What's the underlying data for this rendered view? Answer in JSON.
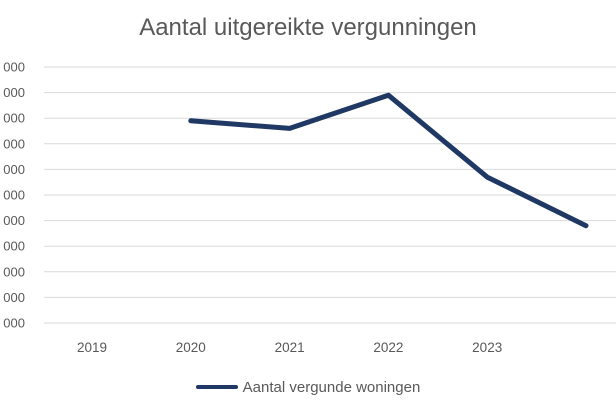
{
  "chart_data": {
    "type": "line",
    "title": "Aantal uitgereikte vergunningen",
    "x_axis": {
      "tick_labels": [
        "2019",
        "2020",
        "2021",
        "2022",
        "2023"
      ]
    },
    "y_axis": {
      "tick_labels": [
        "000",
        "000",
        "000",
        "000",
        "000",
        "000",
        "000",
        "000",
        "000",
        "000",
        "000"
      ],
      "labels_truncated_at_left_edge": true
    },
    "grid": "horizontal",
    "layout": {
      "category_slots": 6,
      "series_starts_at_slot": 1,
      "legend_position": "bottom"
    },
    "legend": {
      "entries": [
        {
          "label": "Aantal vergunde woningen",
          "color": "#1f3864"
        }
      ]
    },
    "series": [
      {
        "name": "Aantal vergunde woningen",
        "color": "#1f3864",
        "points": [
          {
            "x": "2020",
            "value_gridline_units": 7.9
          },
          {
            "x": "2021",
            "value_gridline_units": 7.6
          },
          {
            "x": "2022",
            "value_gridline_units": 8.9
          },
          {
            "x": "2023",
            "value_gridline_units": 5.7
          },
          {
            "x": "",
            "value_gridline_units": 3.8
          }
        ]
      }
    ]
  },
  "colors": {
    "title_text": "#595959",
    "axis_text": "#595959",
    "gridline": "#d9d9d9",
    "series_line": "#1f3864",
    "background": "#ffffff"
  }
}
